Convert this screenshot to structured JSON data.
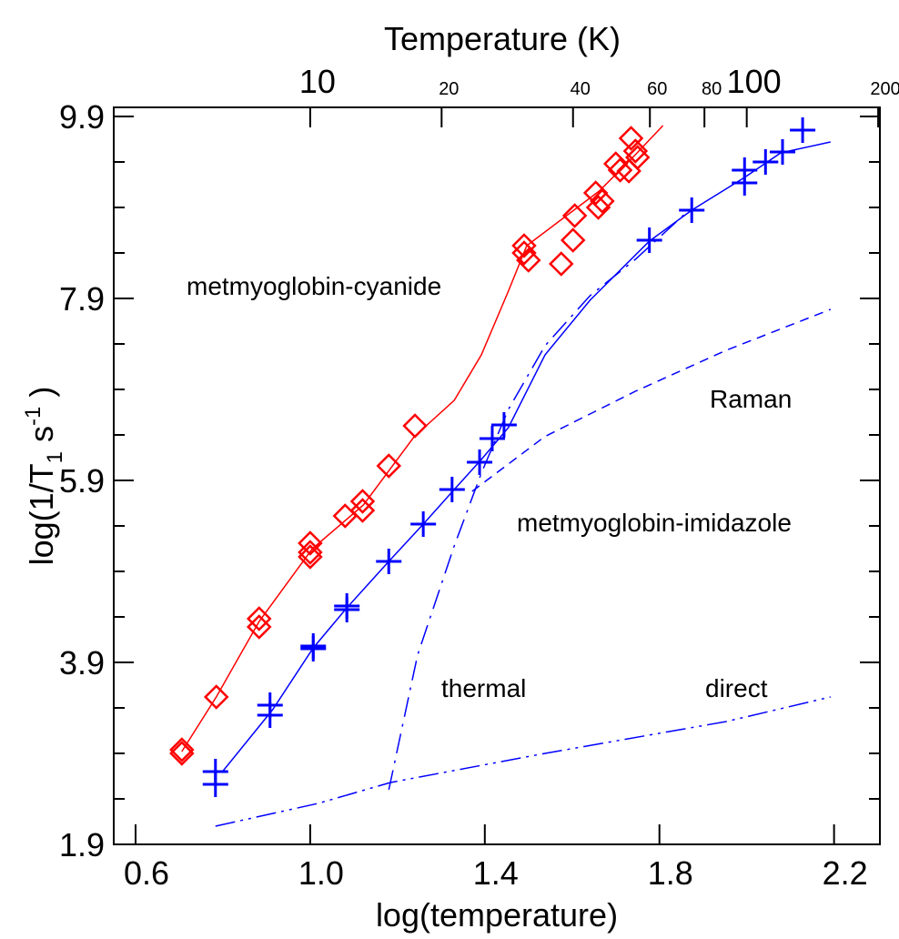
{
  "chart_data": {
    "type": "scatter",
    "title": "Temperature (K)",
    "x_label": "log(temperature)",
    "y_label": [
      "log(1/T",
      "1",
      " s",
      "-1",
      " )"
    ],
    "xlim": [
      0.55,
      2.305
    ],
    "ylim": [
      1.9,
      10.0
    ],
    "xticks": [
      0.6,
      {
        "value": 1,
        "label": "1.0"
      },
      1.4,
      1.8,
      2.2
    ],
    "yticks": [
      1.9,
      3.9,
      5.9,
      7.9,
      9.9
    ],
    "y_minor_ticks": [
      2.4,
      2.9,
      3.4,
      4.4,
      4.9,
      5.4,
      6.4,
      6.9,
      7.4,
      8.4,
      8.9,
      9.4
    ],
    "top_xticks": [
      {
        "value": 1,
        "label": "10"
      },
      {
        "value": 1.30103,
        "label": "20"
      },
      {
        "value": 1.60206,
        "label": "40"
      },
      {
        "value": 1.778151,
        "label": "60"
      },
      {
        "value": 1.90309,
        "label": "80"
      },
      {
        "value": 2,
        "label": "100"
      },
      {
        "value": 2.30103,
        "label": "200"
      }
    ],
    "series": [
      {
        "name": "metmyoglobin-cyanide",
        "color": "#ff0000",
        "marker": "diamond",
        "x": [
          0.706,
          0.706,
          0.785,
          0.883,
          0.883,
          1.0,
          1.0,
          1.0,
          1.08,
          1.12,
          1.12,
          1.18,
          1.24,
          1.49,
          1.49,
          1.5,
          1.575,
          1.602,
          1.606,
          1.654,
          1.66,
          1.669,
          1.7,
          1.71,
          1.735,
          1.745,
          1.75,
          1.73
        ],
        "y": [
          2.94,
          2.9,
          3.52,
          4.38,
          4.29,
          5.21,
          5.11,
          5.06,
          5.51,
          5.67,
          5.57,
          6.06,
          6.5,
          8.48,
          8.4,
          8.32,
          8.28,
          8.54,
          8.81,
          9.06,
          8.9,
          8.97,
          9.38,
          9.31,
          9.66,
          9.52,
          9.45,
          9.3
        ]
      },
      {
        "name": "metmyoglobin-imidazole",
        "color": "#0000ff",
        "marker": "plus",
        "x": [
          0.783,
          0.783,
          0.908,
          0.908,
          1.007,
          1.007,
          1.084,
          1.084,
          1.18,
          1.259,
          1.325,
          1.388,
          1.417,
          1.444,
          1.777,
          1.874,
          1.995,
          1.995,
          2.043,
          2.082,
          2.128
        ],
        "y": [
          2.7,
          2.56,
          3.43,
          3.32,
          4.08,
          4.05,
          4.52,
          4.48,
          5.01,
          5.42,
          5.8,
          6.1,
          6.36,
          6.51,
          8.54,
          8.87,
          9.17,
          9.31,
          9.4,
          9.51,
          9.75
        ]
      },
      {
        "color": "#ff0000",
        "line_style": "solid",
        "x": [
          0.706,
          0.785,
          0.883,
          1.005,
          1.122,
          1.238,
          1.33,
          1.392,
          1.454,
          1.496,
          1.579,
          1.662,
          1.745,
          1.808
        ],
        "y": [
          2.92,
          3.52,
          4.35,
          5.15,
          5.63,
          6.38,
          6.78,
          7.28,
          7.98,
          8.48,
          8.78,
          9.08,
          9.48,
          9.8
        ]
      },
      {
        "color": "#0000ff",
        "line_style": "solid",
        "x": [
          0.799,
          0.914,
          1.007,
          1.084,
          1.18,
          1.259,
          1.33,
          1.392,
          1.454,
          1.538,
          1.641,
          1.777,
          1.874,
          1.995,
          2.078,
          2.192
        ],
        "y": [
          2.7,
          3.38,
          4.06,
          4.5,
          5.01,
          5.42,
          5.8,
          6.13,
          6.48,
          7.28,
          7.88,
          8.53,
          8.87,
          9.23,
          9.5,
          9.62
        ]
      },
      {
        "name": "Raman",
        "color": "#0000ff",
        "line_style": "dashed",
        "x": [
          1.371,
          1.537,
          1.745,
          1.953,
          2.192
        ],
        "y": [
          5.78,
          6.38,
          6.88,
          7.33,
          7.78
        ]
      },
      {
        "name": "thermal",
        "color": "#0000ff",
        "line_style": "dashdot",
        "x": [
          1.18,
          1.246,
          1.33,
          1.392,
          1.454,
          1.538,
          1.641,
          1.745,
          1.87
        ],
        "y": [
          2.5,
          3.98,
          5.18,
          5.98,
          6.68,
          7.38,
          7.93,
          8.33,
          8.88
        ]
      },
      {
        "name": "direct",
        "color": "#0000ff",
        "line_style": "dashdotdot",
        "x": [
          0.783,
          1.018,
          1.184,
          1.538,
          1.953,
          2.192
        ],
        "y": [
          2.1,
          2.35,
          2.58,
          2.9,
          3.25,
          3.52
        ]
      }
    ]
  }
}
